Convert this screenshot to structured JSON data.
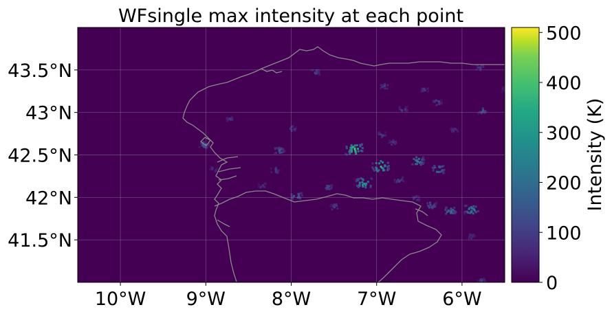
{
  "title": "WFsingle max intensity at each point",
  "map": {
    "lon_range": [
      -10.5,
      -5.5
    ],
    "lat_range": [
      41.0,
      44.0
    ],
    "background_color": "#440154",
    "coastline_color": "#8a8a8a",
    "gridlines": true,
    "x_ticks": [
      {
        "value": -10,
        "label": "10°W"
      },
      {
        "value": -9,
        "label": "9°W"
      },
      {
        "value": -8,
        "label": "8°W"
      },
      {
        "value": -7,
        "label": "7°W"
      },
      {
        "value": -6,
        "label": "6°W"
      }
    ],
    "y_ticks": [
      {
        "value": 43.5,
        "label": "43.5°N"
      },
      {
        "value": 43.0,
        "label": "43°N"
      },
      {
        "value": 42.5,
        "label": "42.5°N"
      },
      {
        "value": 42.0,
        "label": "42°N"
      },
      {
        "value": 41.5,
        "label": "41.5°N"
      }
    ]
  },
  "colorbar": {
    "label": "Intensity (K)",
    "colormap": "viridis",
    "range": [
      0,
      510
    ],
    "ticks": [
      {
        "value": 0,
        "label": "0"
      },
      {
        "value": 100,
        "label": "100"
      },
      {
        "value": 200,
        "label": "200"
      },
      {
        "value": 300,
        "label": "300"
      },
      {
        "value": 400,
        "label": "400"
      },
      {
        "value": 500,
        "label": "500"
      }
    ]
  },
  "chart_data": {
    "type": "heatmap",
    "title": "WFsingle max intensity at each point",
    "xlim": [
      -10.5,
      -5.5
    ],
    "ylim": [
      41.0,
      44.0
    ],
    "value_label": "Intensity (K)",
    "value_range": [
      0,
      510
    ],
    "clusters": [
      {
        "lon": -7.27,
        "lat": 42.58,
        "peak": 460
      },
      {
        "lon": -6.96,
        "lat": 42.38,
        "peak": 430
      },
      {
        "lon": -7.16,
        "lat": 42.18,
        "peak": 390
      },
      {
        "lon": -6.53,
        "lat": 42.44,
        "peak": 300
      },
      {
        "lon": -6.29,
        "lat": 42.34,
        "peak": 290
      },
      {
        "lon": -5.9,
        "lat": 41.87,
        "peak": 330
      },
      {
        "lon": -6.15,
        "lat": 41.85,
        "peak": 270
      },
      {
        "lon": -6.37,
        "lat": 41.92,
        "peak": 210
      },
      {
        "lon": -9.03,
        "lat": 42.63,
        "peak": 190
      },
      {
        "lon": -7.95,
        "lat": 42.03,
        "peak": 240
      },
      {
        "lon": -8.15,
        "lat": 42.56,
        "peak": 210
      },
      {
        "lon": -6.75,
        "lat": 42.22,
        "peak": 160
      },
      {
        "lon": -7.5,
        "lat": 41.9,
        "peak": 150
      },
      {
        "lon": -6.95,
        "lat": 42.75,
        "peak": 140
      },
      {
        "lon": -6.82,
        "lat": 42.66,
        "peak": 130
      },
      {
        "lon": -7.73,
        "lat": 43.48,
        "peak": 160
      },
      {
        "lon": -6.92,
        "lat": 43.32,
        "peak": 140
      },
      {
        "lon": -6.7,
        "lat": 43.05,
        "peak": 150
      },
      {
        "lon": -6.3,
        "lat": 43.13,
        "peak": 160
      },
      {
        "lon": -5.77,
        "lat": 43.03,
        "peak": 170
      },
      {
        "lon": -5.8,
        "lat": 43.54,
        "peak": 140
      },
      {
        "lon": -8.73,
        "lat": 42.93,
        "peak": 120
      },
      {
        "lon": -8.0,
        "lat": 42.82,
        "peak": 130
      },
      {
        "lon": -8.2,
        "lat": 42.33,
        "peak": 150
      },
      {
        "lon": -7.58,
        "lat": 42.13,
        "peak": 160
      },
      {
        "lon": -8.92,
        "lat": 42.34,
        "peak": 110
      },
      {
        "lon": -8.35,
        "lat": 42.15,
        "peak": 120
      },
      {
        "lon": -6.45,
        "lat": 43.28,
        "peak": 120
      },
      {
        "lon": -5.5,
        "lat": 43.28,
        "peak": 130
      },
      {
        "lon": -6.1,
        "lat": 42.8,
        "peak": 120
      },
      {
        "lon": -6.55,
        "lat": 42.0,
        "peak": 130
      },
      {
        "lon": -5.9,
        "lat": 41.55,
        "peak": 110
      },
      {
        "lon": -5.78,
        "lat": 41.03,
        "peak": 120
      }
    ]
  }
}
